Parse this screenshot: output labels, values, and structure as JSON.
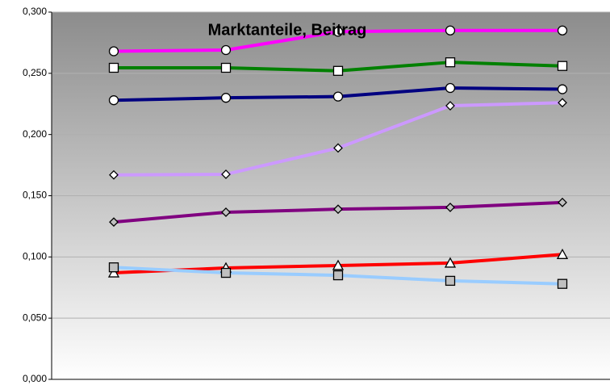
{
  "chart_data": {
    "type": "line",
    "title": "Marktanteile, Beitrag",
    "categories": [
      null,
      null,
      null,
      null,
      null
    ],
    "series": [
      {
        "color": "#ff00ff",
        "marker": "circle",
        "marker_fill": "#ffffff",
        "values": [
          0.268,
          0.269,
          0.284,
          0.285,
          0.285
        ]
      },
      {
        "color": "#008000",
        "marker": "square",
        "marker_fill": "#ffffff",
        "values": [
          0.2545,
          0.2545,
          0.252,
          0.259,
          0.256
        ]
      },
      {
        "color": "#000080",
        "marker": "circle",
        "marker_fill": "#ffffff",
        "values": [
          0.228,
          0.23,
          0.231,
          0.238,
          0.237
        ]
      },
      {
        "color": "#cc99ff",
        "marker": "diamond",
        "marker_fill": "#ffffff",
        "values": [
          0.167,
          0.1675,
          0.189,
          0.2235,
          0.226
        ]
      },
      {
        "color": "#800080",
        "marker": "diamond",
        "marker_fill": "#c0c0c0",
        "values": [
          0.1285,
          0.1365,
          0.139,
          0.1405,
          0.1445
        ]
      },
      {
        "color": "#ff0000",
        "marker": "triangle",
        "marker_fill": "#ffffff",
        "values": [
          0.087,
          0.091,
          0.093,
          0.095,
          0.102
        ]
      },
      {
        "color": "#99ccff",
        "marker": "square",
        "marker_fill": "#c0c0c0",
        "values": [
          0.0915,
          0.087,
          0.085,
          0.0805,
          0.078
        ]
      }
    ],
    "ylim": [
      0,
      0.3
    ],
    "yticks": [
      {
        "value": 0,
        "label": "0,000"
      },
      {
        "value": 0.05,
        "label": "0,050"
      },
      {
        "value": 0.1,
        "label": "0,100"
      },
      {
        "value": 0.15,
        "label": "0,150"
      },
      {
        "value": 0.2,
        "label": "0,200"
      },
      {
        "value": 0.25,
        "label": "0,250"
      },
      {
        "value": 0.3,
        "label": "0,300"
      }
    ],
    "grid": true
  }
}
